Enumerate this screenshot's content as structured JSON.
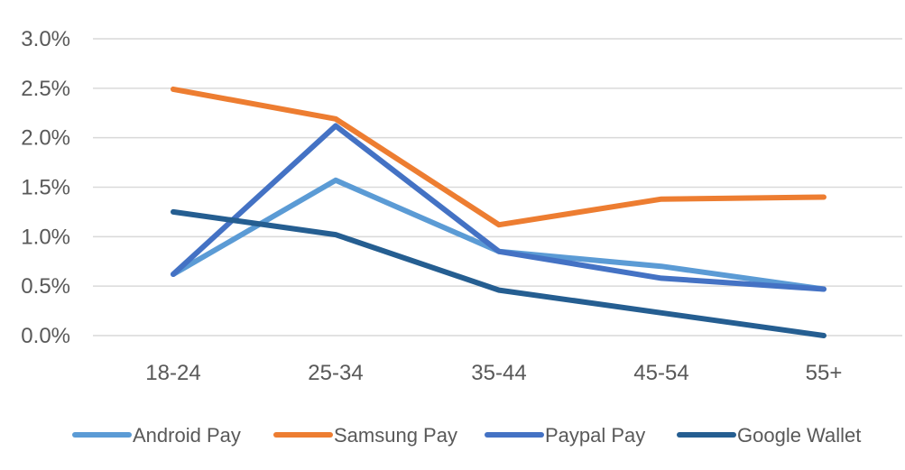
{
  "chart_data": {
    "type": "line",
    "categories": [
      "18-24",
      "25-34",
      "35-44",
      "45-54",
      "55+"
    ],
    "ylim": [
      0,
      0.03
    ],
    "y_ticks": [
      {
        "value": 0.0,
        "label": "0.0%"
      },
      {
        "value": 0.005,
        "label": "0.5%"
      },
      {
        "value": 0.01,
        "label": "1.0%"
      },
      {
        "value": 0.015,
        "label": "1.5%"
      },
      {
        "value": 0.02,
        "label": "2.0%"
      },
      {
        "value": 0.025,
        "label": "2.5%"
      },
      {
        "value": 0.03,
        "label": "3.0%"
      }
    ],
    "grid": true,
    "legend_position": "bottom",
    "series": [
      {
        "name": "Android Pay",
        "color": "#5B9BD5",
        "values": [
          0.0062,
          0.0157,
          0.0085,
          0.007,
          0.0047
        ]
      },
      {
        "name": "Samsung Pay",
        "color": "#ED7D31",
        "values": [
          0.0249,
          0.0219,
          0.0112,
          0.0138,
          0.014
        ]
      },
      {
        "name": "Paypal Pay",
        "color": "#4472C4",
        "values": [
          0.0062,
          0.0212,
          0.0085,
          0.0058,
          0.0047
        ]
      },
      {
        "name": "Google Wallet",
        "color": "#255E91",
        "values": [
          0.0125,
          0.0102,
          0.0046,
          0.0023,
          0.0
        ]
      }
    ]
  }
}
